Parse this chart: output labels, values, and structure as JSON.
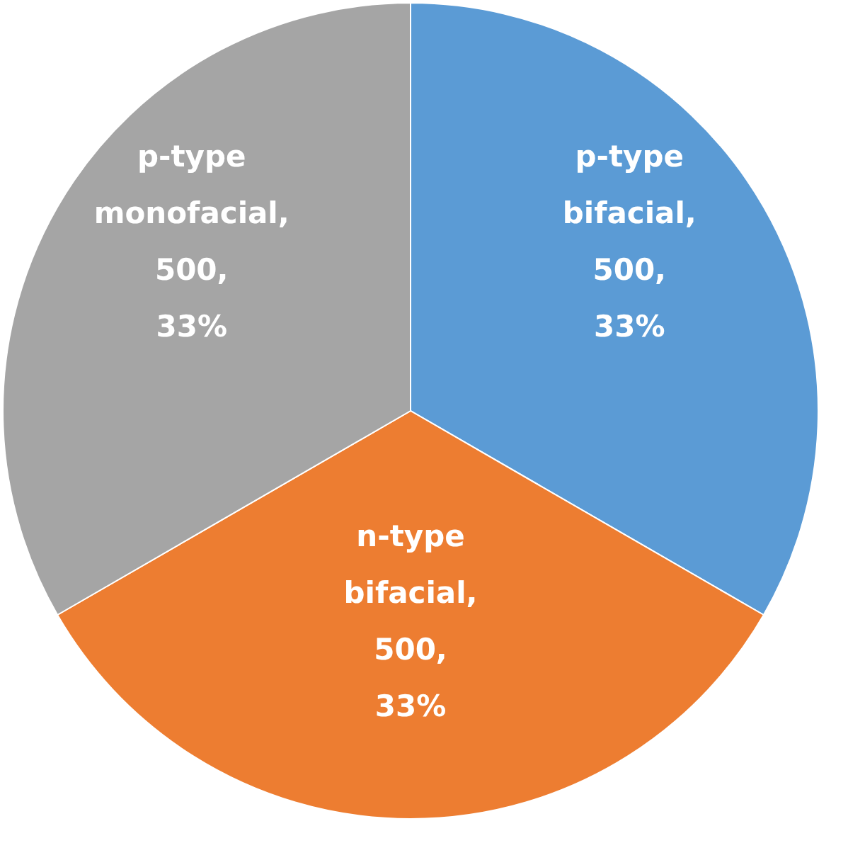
{
  "chart_data": {
    "type": "pie",
    "categories": [
      "p-type bifacial",
      "n-type bifacial",
      "p-type monofacial"
    ],
    "values": [
      500,
      500,
      500
    ],
    "colors": [
      "#5b9bd5",
      "#ed7d31",
      "#a5a5a5"
    ],
    "value_labels": [
      ", 500, 33%",
      ", 500, 33%",
      ", 500, 33%"
    ],
    "legend": false
  }
}
